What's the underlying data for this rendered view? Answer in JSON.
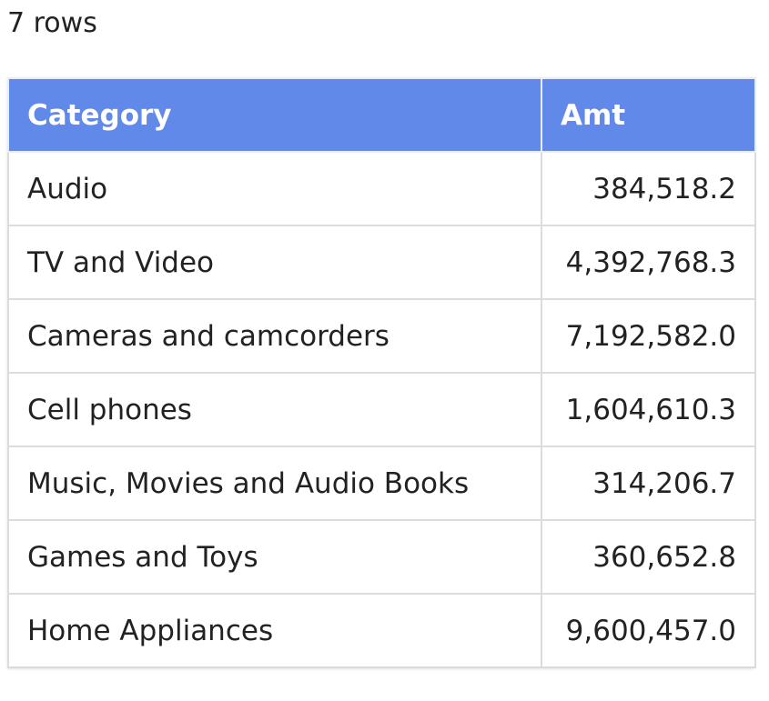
{
  "row_count_label": "7 rows",
  "table": {
    "columns": [
      "Category",
      "Amt"
    ],
    "header_color": "#6189ea",
    "rows": [
      {
        "category": "Audio",
        "amt": "384,518.2"
      },
      {
        "category": "TV and Video",
        "amt": "4,392,768.3"
      },
      {
        "category": "Cameras and camcorders",
        "amt": "7,192,582.0"
      },
      {
        "category": "Cell phones",
        "amt": "1,604,610.3"
      },
      {
        "category": "Music, Movies and Audio Books",
        "amt": "314,206.7"
      },
      {
        "category": "Games and Toys",
        "amt": "360,652.8"
      },
      {
        "category": "Home Appliances",
        "amt": "9,600,457.0"
      }
    ]
  }
}
